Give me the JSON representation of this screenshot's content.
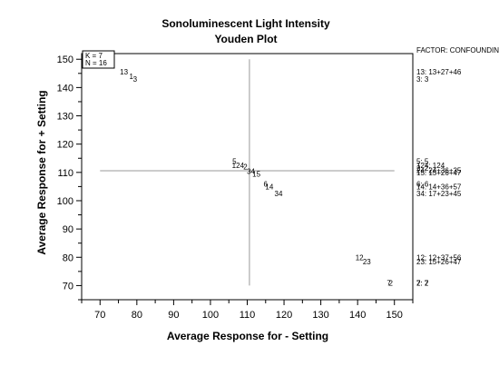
{
  "chart_data": {
    "type": "scatter",
    "title": "Sonoluminescent Light Intensity",
    "subtitle": "Youden Plot",
    "xlabel": "Average Response for  - Setting",
    "ylabel": "Average Response for  + Setting",
    "xlim": [
      65,
      155
    ],
    "ylim": [
      65,
      152
    ],
    "x_ticks": [
      70,
      80,
      90,
      100,
      110,
      120,
      130,
      140,
      150
    ],
    "y_ticks": [
      70,
      80,
      90,
      100,
      110,
      120,
      130,
      140,
      150
    ],
    "info_box": [
      "K = 7",
      "N = 16"
    ],
    "reference_lines": {
      "x": 110.6,
      "y": 110.6
    },
    "points": [
      {
        "label": "13",
        "x": 76.5,
        "y": 145.5
      },
      {
        "label": "1",
        "x": 78.5,
        "y": 144.0
      },
      {
        "label": "3",
        "x": 79.5,
        "y": 143.0
      },
      {
        "label": "5",
        "x": 106.5,
        "y": 114.0
      },
      {
        "label": "124",
        "x": 107.5,
        "y": 112.5
      },
      {
        "label": "2",
        "x": 109.5,
        "y": 112.0
      },
      {
        "label": "34",
        "x": 111.0,
        "y": 110.5
      },
      {
        "label": "15",
        "x": 112.5,
        "y": 109.5
      },
      {
        "label": "6",
        "x": 115.0,
        "y": 106.0
      },
      {
        "label": "14",
        "x": 116.0,
        "y": 105.0
      },
      {
        "label": "34",
        "x": 118.5,
        "y": 102.5
      },
      {
        "label": "12",
        "x": 140.5,
        "y": 80.0
      },
      {
        "label": "23",
        "x": 142.5,
        "y": 78.5
      },
      {
        "label": "7",
        "x": 148.5,
        "y": 71.0
      },
      {
        "label": "2",
        "x": 149.0,
        "y": 71.0
      }
    ],
    "legend_header": "FACTOR: CONFOUNDING",
    "legend_entries": [
      {
        "text": "13:  13+27+46",
        "y": 145.5
      },
      {
        "text": "3:   3",
        "y": 143.0
      },
      {
        "text": "5:   5",
        "y": 114.0
      },
      {
        "text": "124: 124",
        "y": 112.5
      },
      {
        "text": "2:   2",
        "y": 111.5
      },
      {
        "text": "24:  24+36+35",
        "y": 110.8
      },
      {
        "text": "15:  15+26+47",
        "y": 110.0
      },
      {
        "text": "6:   6",
        "y": 106.0
      },
      {
        "text": "14:  14+36+57",
        "y": 105.0
      },
      {
        "text": "34:  17+23+45",
        "y": 102.5
      },
      {
        "text": "12:  12+37+56",
        "y": 80.0
      },
      {
        "text": "23:  15+26+47",
        "y": 78.5
      },
      {
        "text": "7:   7",
        "y": 71.0
      },
      {
        "text": "2:   2",
        "y": 71.0
      }
    ]
  }
}
